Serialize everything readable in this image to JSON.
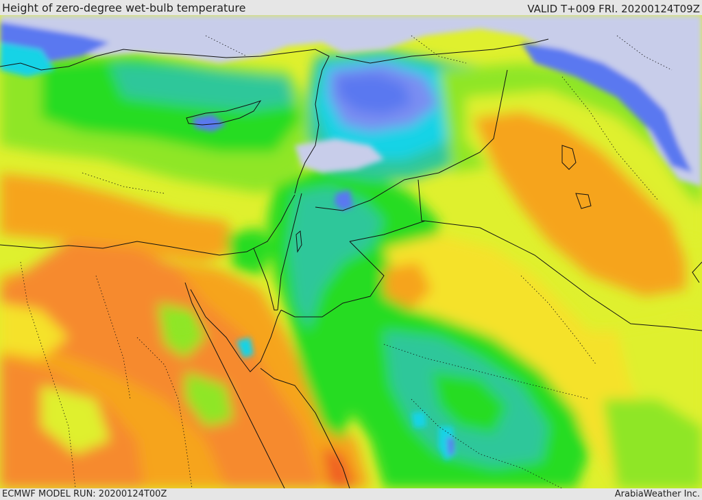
{
  "header": {
    "title": "Height of zero-degree wet-bulb temperature",
    "valid": "VALID T+009 FRI. 20200124T09Z"
  },
  "footer": {
    "model_run": "ECMWF MODEL RUN: 20200124T00Z",
    "credit": "ArabiaWeather Inc."
  },
  "map": {
    "colors": {
      "sea_below_freezing": "#c8cdea",
      "dark_blue": "#3f5ae6",
      "medium_blue": "#5a78f0",
      "light_blue": "#7a8ef2",
      "cyan": "#17d3e6",
      "turquoise": "#2ec79a",
      "green": "#25dc22",
      "light_green": "#8fe628",
      "yellow_green": "#dff02e",
      "yellow": "#f5e22c",
      "orange": "#f6a41d",
      "dark_orange": "#f68a2e",
      "red_orange": "#f06022",
      "border_line": "#111111"
    }
  }
}
